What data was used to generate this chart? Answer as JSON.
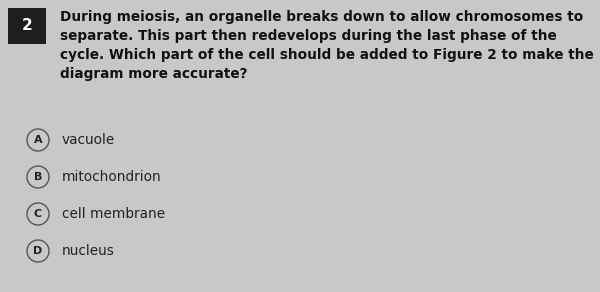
{
  "question_number": "2",
  "question_text": "During meiosis, an organelle breaks down to allow chromosomes to\nseparate. This part then redevelops during the last phase of the\ncycle. Which part of the cell should be added to Figure 2 to make the\ndiagram more accurate?",
  "options": [
    {
      "letter": "A",
      "text": "vacuole"
    },
    {
      "letter": "B",
      "text": "mitochondrion"
    },
    {
      "letter": "C",
      "text": "cell membrane"
    },
    {
      "letter": "D",
      "text": "nucleus"
    }
  ],
  "bg_color": "#c8c8c8",
  "number_box_color": "#1e1e1e",
  "number_text_color": "#ffffff",
  "question_text_color": "#111111",
  "option_text_color": "#222222",
  "circle_edge_color": "#555555",
  "circle_face_color": "#c8c8c8",
  "question_font_size": 9.8,
  "option_font_size": 9.8,
  "number_font_size": 11,
  "fig_width": 6.0,
  "fig_height": 2.92,
  "dpi": 100
}
